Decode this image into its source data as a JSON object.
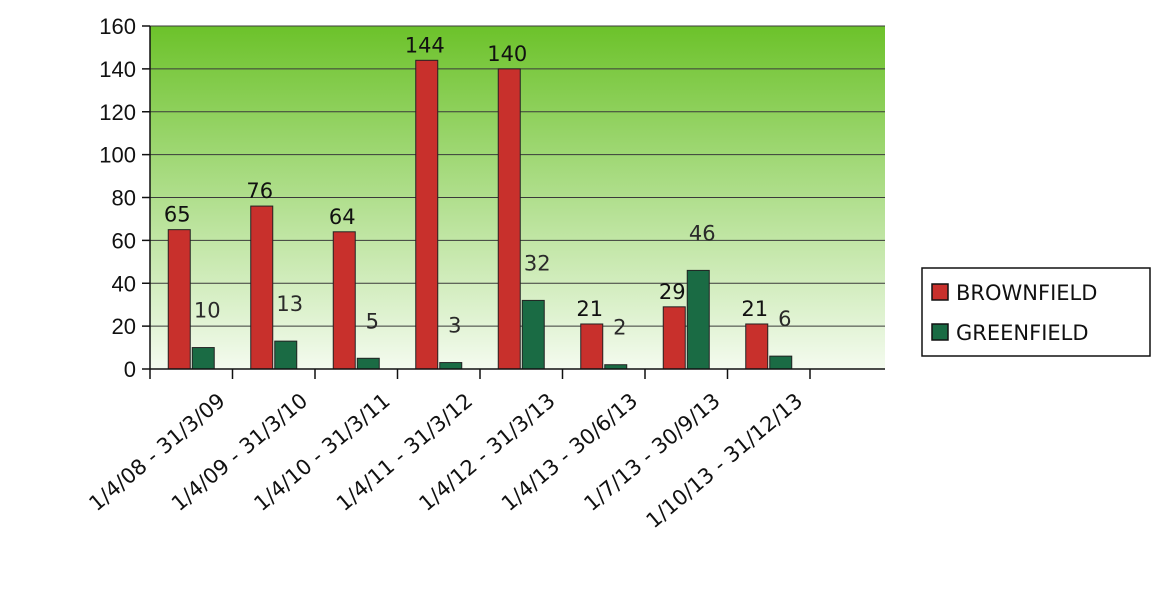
{
  "chart_data": {
    "type": "bar",
    "categories": [
      "1/4/08 - 31/3/09",
      "1/4/09 - 31/3/10",
      "1/4/10 - 31/3/11",
      "1/4/11 - 31/3/12",
      "1/4/12 - 31/3/13",
      "1/4/13 - 30/6/13",
      "1/7/13 - 30/9/13",
      "1/10/13 - 31/12/13"
    ],
    "series": [
      {
        "name": "BROWNFIELD",
        "values": [
          65,
          76,
          64,
          144,
          140,
          21,
          29,
          21
        ],
        "color": "#c8302c"
      },
      {
        "name": "GREENFIELD",
        "values": [
          10,
          13,
          5,
          3,
          32,
          2,
          46,
          6
        ],
        "color": "#1a6b44"
      }
    ],
    "yticks": [
      0,
      20,
      40,
      60,
      80,
      100,
      120,
      140,
      160
    ],
    "ylim": [
      0,
      160
    ],
    "grid": true,
    "legend_position": "right",
    "background_gradient": [
      "#6cc22a",
      "#f4fbef"
    ]
  }
}
